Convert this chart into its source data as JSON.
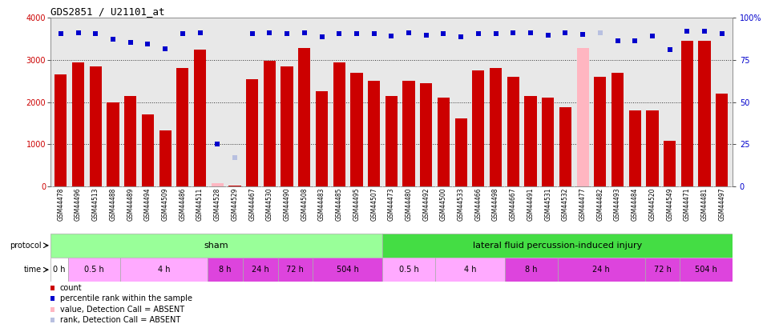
{
  "title": "GDS2851 / U21101_at",
  "samples": [
    "GSM44478",
    "GSM44496",
    "GSM44513",
    "GSM44488",
    "GSM44489",
    "GSM44494",
    "GSM44509",
    "GSM44486",
    "GSM44511",
    "GSM44528",
    "GSM44529",
    "GSM44467",
    "GSM44530",
    "GSM44490",
    "GSM44508",
    "GSM44483",
    "GSM44485",
    "GSM44495",
    "GSM44507",
    "GSM44473",
    "GSM44480",
    "GSM44492",
    "GSM44500",
    "GSM44533",
    "GSM44466",
    "GSM44498",
    "GSM44667",
    "GSM44491",
    "GSM44531",
    "GSM44532",
    "GSM44477",
    "GSM44482",
    "GSM44493",
    "GSM44484",
    "GSM44520",
    "GSM44549",
    "GSM44471",
    "GSM44481",
    "GSM44497"
  ],
  "bar_values": [
    2650,
    2950,
    2850,
    2000,
    2150,
    1700,
    1320,
    2800,
    3250,
    80,
    20,
    2550,
    2980,
    2850,
    3280,
    2250,
    2950,
    2700,
    2500,
    2150,
    2500,
    2450,
    2100,
    1620,
    2750,
    2800,
    2600,
    2150,
    2100,
    1870,
    3280,
    2600,
    2700,
    1800,
    1800,
    1080,
    3450,
    3450,
    2200
  ],
  "absent_bar_indices": [
    9,
    30
  ],
  "absent_rank_indices": [
    10,
    31
  ],
  "rank_values": [
    3620,
    3650,
    3630,
    3490,
    3420,
    3380,
    3270,
    3620,
    3650,
    1000,
    680,
    3620,
    3650,
    3620,
    3650,
    3540,
    3620,
    3620,
    3620,
    3560,
    3640,
    3580,
    3620,
    3540,
    3620,
    3620,
    3640,
    3640,
    3580,
    3640,
    3600,
    3640,
    3460,
    3450,
    3560,
    3250,
    3680,
    3680,
    3620
  ],
  "ylim": [
    0,
    4000
  ],
  "yticks": [
    0,
    1000,
    2000,
    3000,
    4000
  ],
  "y2ticks_vals": [
    0,
    1000,
    2000,
    3000,
    4000
  ],
  "y2ticks_labels": [
    "0",
    "25",
    "50",
    "75",
    "100%"
  ],
  "bar_color": "#cc0000",
  "absent_bar_color": "#ffb6c1",
  "rank_color": "#0000cc",
  "absent_rank_color": "#b8c0e0",
  "plot_bg_color": "#e8e8e8",
  "sham_color": "#99ff99",
  "injury_color": "#44dd44",
  "time_color_white": "#ffffff",
  "time_color_light_pink": "#ffaaff",
  "time_color_dark_pink": "#dd44dd",
  "sham_n": 19,
  "injury_n": 20,
  "sham_time_groups": [
    {
      "label": "0 h",
      "n": 1,
      "color": "#ffffff"
    },
    {
      "label": "0.5 h",
      "n": 3,
      "color": "#ffaaff"
    },
    {
      "label": "4 h",
      "n": 5,
      "color": "#ffaaff"
    },
    {
      "label": "8 h",
      "n": 2,
      "color": "#dd44dd"
    },
    {
      "label": "24 h",
      "n": 2,
      "color": "#dd44dd"
    },
    {
      "label": "72 h",
      "n": 2,
      "color": "#dd44dd"
    },
    {
      "label": "504 h",
      "n": 4,
      "color": "#dd44dd"
    }
  ],
  "injury_time_groups": [
    {
      "label": "0.5 h",
      "n": 3,
      "color": "#ffaaff"
    },
    {
      "label": "4 h",
      "n": 4,
      "color": "#ffaaff"
    },
    {
      "label": "8 h",
      "n": 3,
      "color": "#dd44dd"
    },
    {
      "label": "24 h",
      "n": 5,
      "color": "#dd44dd"
    },
    {
      "label": "72 h",
      "n": 2,
      "color": "#dd44dd"
    },
    {
      "label": "504 h",
      "n": 3,
      "color": "#dd44dd"
    }
  ],
  "legend_items": [
    {
      "color": "#cc0000",
      "label": "count"
    },
    {
      "color": "#0000cc",
      "label": "percentile rank within the sample"
    },
    {
      "color": "#ffb6c1",
      "label": "value, Detection Call = ABSENT"
    },
    {
      "color": "#b8c0e0",
      "label": "rank, Detection Call = ABSENT"
    }
  ]
}
